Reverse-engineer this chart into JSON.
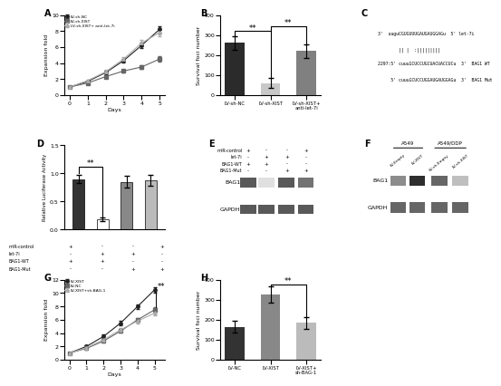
{
  "panel_A": {
    "days": [
      0,
      1,
      2,
      3,
      4,
      5
    ],
    "LV_sh_NC": [
      1.0,
      1.7,
      2.8,
      4.3,
      6.2,
      8.2
    ],
    "LV_sh_XIST": [
      1.0,
      1.5,
      2.3,
      3.0,
      3.5,
      4.5
    ],
    "LV_sh_XIST_anti": [
      1.0,
      1.8,
      2.9,
      4.5,
      6.5,
      7.8
    ],
    "LV_sh_NC_err": [
      0.1,
      0.15,
      0.2,
      0.25,
      0.3,
      0.35
    ],
    "LV_sh_XIST_err": [
      0.1,
      0.12,
      0.18,
      0.2,
      0.22,
      0.3
    ],
    "LV_sh_XIST_anti_err": [
      0.1,
      0.15,
      0.2,
      0.25,
      0.35,
      0.4
    ],
    "ylabel": "Expansion fold",
    "xlabel": "Days",
    "title": "A",
    "ylim": [
      0,
      10
    ],
    "legend": [
      "LV-sh-NC",
      "LV-sh-XIST",
      "LV-sh-XIST+ anti-let-7i"
    ]
  },
  "panel_B": {
    "categories": [
      "LV-sh-NC",
      "LV-sh-XIST",
      "LV-sh-XIST+\nanti-let-7i"
    ],
    "values": [
      260,
      60,
      220
    ],
    "errors": [
      35,
      25,
      35
    ],
    "colors": [
      "#2b2b2b",
      "#c8c8c8",
      "#808080"
    ],
    "ylabel": "Survival foci number",
    "title": "B",
    "ylim": [
      0,
      400
    ]
  },
  "panel_C": {
    "title": "C",
    "line1": "3'  uuguCGUGUUUGAUGAUGGAGu  5' let-7i",
    "line2": "        || |  :|||||||||",
    "line3": "2297:5' cuuuGCUCCUGCUACUACCUCu  3'  BAG1 WT",
    "line4": "     5' cuuuGCUCCUGGAUGAUGGAGu  3'  BAG1 Mut"
  },
  "panel_D": {
    "values": [
      0.9,
      0.18,
      0.85,
      0.88
    ],
    "errors": [
      0.08,
      0.04,
      0.1,
      0.1
    ],
    "colors": [
      "#333333",
      "#ffffff",
      "#888888",
      "#bbbbbb"
    ],
    "ylabel": "Relative Luciferase Activity",
    "title": "D",
    "ylim": [
      0,
      1.5
    ],
    "row_names": [
      "miR-control",
      "let-7i",
      "BAG1-WT",
      "BAG1-Mut"
    ],
    "signs": [
      [
        "+",
        "-",
        "-",
        "+"
      ],
      [
        "-",
        "+",
        "+",
        "-"
      ],
      [
        "+",
        "+",
        "-",
        "-"
      ],
      [
        "-",
        "-",
        "+",
        "+"
      ]
    ]
  },
  "panel_E": {
    "title": "E",
    "row_names": [
      "miR-control",
      "let-7i",
      "BAG1-WT",
      "BAG1-Mut"
    ],
    "signs": [
      [
        "+",
        "-",
        "-",
        "+"
      ],
      [
        "-",
        "+",
        "+",
        "-"
      ],
      [
        "+",
        "+",
        "-",
        "-"
      ],
      [
        "-",
        "-",
        "+",
        "+"
      ]
    ],
    "bag1_gray": [
      0.35,
      0.88,
      0.35,
      0.45
    ],
    "gapdh_gray": [
      0.35,
      0.35,
      0.35,
      0.35
    ]
  },
  "panel_F": {
    "title": "F",
    "group1": "A549",
    "group2": "A549/DDP",
    "col_labels": [
      "LV-Empty",
      "LV-XIST",
      "LV-sh-Empty",
      "LV-sh-XIST"
    ],
    "bag1_gray": [
      0.55,
      0.18,
      0.4,
      0.75
    ],
    "gapdh_gray": [
      0.4,
      0.4,
      0.4,
      0.4
    ]
  },
  "panel_G": {
    "days": [
      0,
      1,
      2,
      3,
      4,
      5
    ],
    "LV_XIST": [
      1.0,
      2.0,
      3.5,
      5.5,
      8.0,
      10.5
    ],
    "LV_NC": [
      1.0,
      1.7,
      2.8,
      4.3,
      6.0,
      7.5
    ],
    "LV_XIST_shBAG1": [
      1.0,
      1.8,
      3.0,
      4.5,
      5.8,
      7.0
    ],
    "LV_XIST_err": [
      0.1,
      0.2,
      0.25,
      0.3,
      0.35,
      0.4
    ],
    "LV_NC_err": [
      0.1,
      0.15,
      0.2,
      0.25,
      0.3,
      0.35
    ],
    "LV_XIST_shBAG1_err": [
      0.1,
      0.15,
      0.2,
      0.25,
      0.3,
      0.35
    ],
    "ylabel": "Expansion fold",
    "xlabel": "Days",
    "title": "G",
    "ylim": [
      0,
      12
    ],
    "legend": [
      "LV-XIST",
      "LV-NC",
      "LV-XIST+sh-BAG-1"
    ]
  },
  "panel_H": {
    "categories": [
      "LV-NC",
      "LV-XIST",
      "LV-XIST+\nsh-BAG-1"
    ],
    "values": [
      165,
      325,
      185
    ],
    "errors": [
      30,
      40,
      30
    ],
    "colors": [
      "#333333",
      "#888888",
      "#bbbbbb"
    ],
    "ylabel": "Survival foci number",
    "title": "H",
    "ylim": [
      0,
      400
    ]
  },
  "figure_bg": "#ffffff",
  "lc_dark": "#222222",
  "lc_mid": "#666666",
  "lc_light": "#aaaaaa"
}
